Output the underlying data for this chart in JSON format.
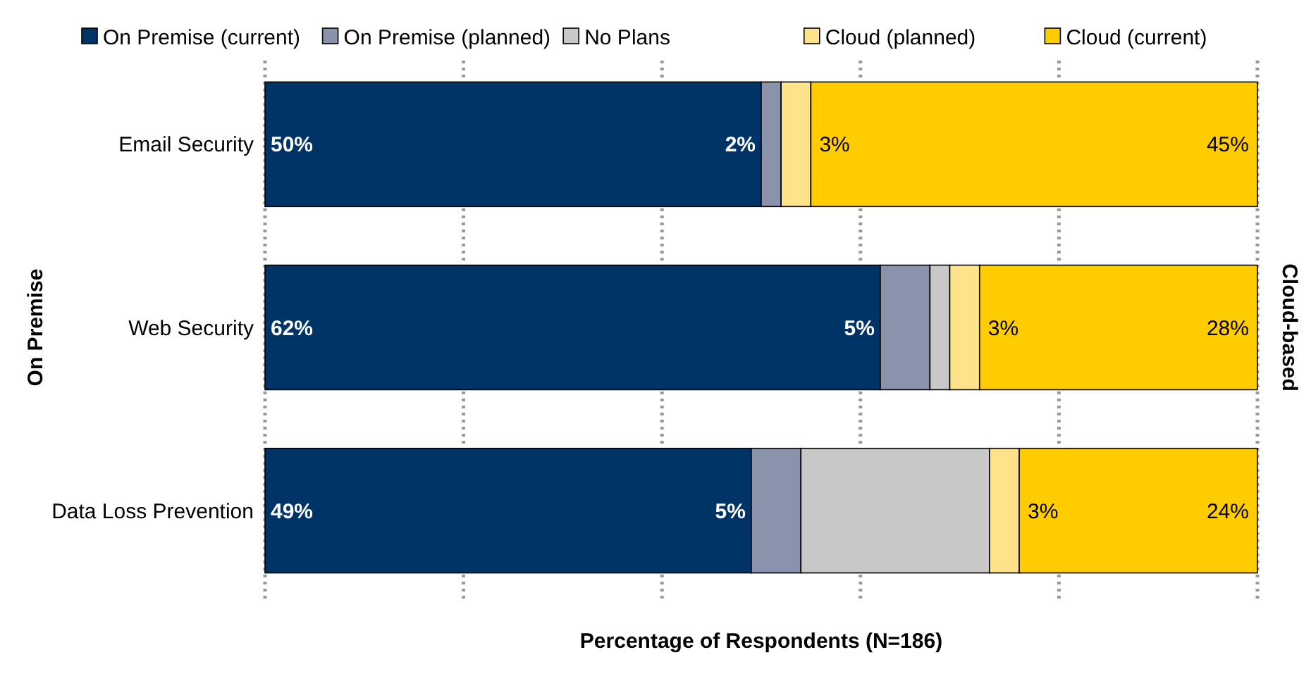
{
  "chart_data": {
    "type": "bar",
    "orientation": "horizontal",
    "stacked": true,
    "categories": [
      "Email Security",
      "Web Security",
      "Data Loss Prevention"
    ],
    "series": [
      {
        "name": "On Premise (current)",
        "color": "#003366",
        "values": [
          50,
          62,
          49
        ],
        "value_labels": [
          "50%",
          "62%",
          "49%"
        ]
      },
      {
        "name": "On Premise (planned)",
        "color": "#8a93ab",
        "values": [
          2,
          5,
          5
        ],
        "value_labels": [
          "2%",
          "5%",
          "5%"
        ]
      },
      {
        "name": "No Plans",
        "color": "#c8c8c8",
        "values": [
          0,
          2,
          19
        ],
        "value_labels": [
          null,
          null,
          null
        ]
      },
      {
        "name": "Cloud (planned)",
        "color": "#ffe38a",
        "values": [
          3,
          3,
          3
        ],
        "value_labels": [
          "3%",
          "3%",
          "3%"
        ]
      },
      {
        "name": "Cloud (current)",
        "color": "#ffcc00",
        "values": [
          45,
          28,
          24
        ],
        "value_labels": [
          "45%",
          "28%",
          "24%"
        ]
      }
    ],
    "xlim": [
      0,
      100
    ],
    "xticks": [
      {
        "value": 0,
        "label": null
      },
      {
        "value": 20,
        "label": null
      },
      {
        "value": 40,
        "label": null
      },
      {
        "value": 60,
        "label": null
      },
      {
        "value": 80,
        "label": null
      },
      {
        "value": 100,
        "label": null
      }
    ],
    "tick_labels": "y",
    "grid": "x",
    "legend": "top",
    "xlabel": "Percentage of Respondents (N=186)",
    "annotations": [
      "On Premise",
      "Cloud-based"
    ]
  }
}
